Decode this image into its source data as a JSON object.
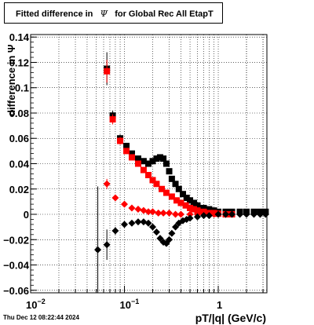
{
  "header": {
    "title_pre": "Fitted difference in",
    "title_sym": "Ψ",
    "title_post": "for Global Rec All EtapT"
  },
  "footer": {
    "timestamp": "Thu Dec 12 08:22:44 2024"
  },
  "chart_data": {
    "type": "scatter",
    "title": "Fitted difference in Ψ for Global Rec All EtapT",
    "xlabel": "pT/|q| (GeV/c)",
    "ylabel": "difference in Ψ",
    "xscale": "log",
    "xlim": [
      0.01,
      3.3
    ],
    "ylim": [
      -0.062,
      0.142
    ],
    "grid": true,
    "xticks": [
      {
        "v": 0.01,
        "base": "10",
        "exp": "−2"
      },
      {
        "v": 0.1,
        "base": "10",
        "exp": "−1"
      },
      {
        "v": 1,
        "base": "1",
        "exp": ""
      }
    ],
    "yticks": [
      {
        "v": -0.06,
        "label": "−0.06"
      },
      {
        "v": -0.04,
        "label": "−0.04"
      },
      {
        "v": -0.02,
        "label": "−0.02"
      },
      {
        "v": 0,
        "label": "0"
      },
      {
        "v": 0.02,
        "label": "0.02"
      },
      {
        "v": 0.04,
        "label": "0.04"
      },
      {
        "v": 0.06,
        "label": "0.06"
      },
      {
        "v": 0.08,
        "label": "0.08"
      },
      {
        "v": 0.1,
        "label": "0.1"
      },
      {
        "v": 0.12,
        "label": "0.12"
      },
      {
        "v": 0.14,
        "label": "0.14"
      }
    ],
    "series": [
      {
        "marker": "square",
        "color": "#000000",
        "x": [
          0.065,
          0.075,
          0.09,
          0.105,
          0.12,
          0.14,
          0.16,
          0.18,
          0.2,
          0.22,
          0.24,
          0.26,
          0.28,
          0.3,
          0.32,
          0.35,
          0.38,
          0.42,
          0.46,
          0.5,
          0.55,
          0.6,
          0.7,
          0.8,
          0.9,
          1.0,
          1.2,
          1.4,
          1.7,
          2.0,
          2.4,
          2.8,
          3.2
        ],
        "y": [
          0.115,
          0.078,
          0.06,
          0.054,
          0.048,
          0.044,
          0.042,
          0.04,
          0.042,
          0.044,
          0.045,
          0.044,
          0.04,
          0.034,
          0.028,
          0.024,
          0.02,
          0.016,
          0.013,
          0.011,
          0.009,
          0.007,
          0.005,
          0.004,
          0.003,
          0.002,
          0.002,
          0.002,
          0.002,
          0.002,
          0.002,
          0.002,
          0.002
        ],
        "yerr": [
          0.013,
          0.004,
          0.003,
          0.002,
          0.002,
          0.001,
          0.001,
          0.001,
          0.001,
          0.001,
          0.001,
          0.001,
          0.001,
          0.001,
          0.001,
          0.001,
          0.001,
          0.001,
          0.001,
          0.001,
          0.001,
          0.001,
          0.001,
          0.001,
          0.001,
          0.001,
          0.001,
          0.001,
          0.001,
          0.001,
          0.001,
          0.001,
          0.001
        ]
      },
      {
        "marker": "square",
        "color": "#ff0000",
        "x": [
          0.065,
          0.075,
          0.09,
          0.105,
          0.12,
          0.14,
          0.16,
          0.18,
          0.2,
          0.22,
          0.25,
          0.28,
          0.32,
          0.36,
          0.4,
          0.45,
          0.5,
          0.55,
          0.6,
          0.7,
          0.8,
          0.9,
          1.0,
          1.2,
          1.4
        ],
        "y": [
          0.113,
          0.075,
          0.058,
          0.05,
          0.045,
          0.04,
          0.035,
          0.031,
          0.027,
          0.024,
          0.02,
          0.017,
          0.014,
          0.011,
          0.009,
          0.007,
          0.005,
          0.004,
          0.003,
          0.002,
          0.001,
          0.001,
          0.0005,
          0.0,
          0.0
        ],
        "yerr": [
          0.009,
          0.004,
          0.003,
          0.002,
          0.002,
          0.001,
          0.001,
          0.001,
          0.001,
          0.001,
          0.001,
          0.001,
          0.001,
          0.001,
          0.001,
          0.001,
          0.001,
          0.001,
          0.001,
          0.001,
          0.001,
          0.001,
          0.001,
          0.001,
          0.001
        ]
      },
      {
        "marker": "diamond",
        "color": "#ff0000",
        "x": [
          0.065,
          0.08,
          0.1,
          0.12,
          0.14,
          0.16,
          0.18,
          0.2,
          0.23,
          0.26,
          0.3,
          0.35,
          0.4,
          0.5,
          0.6,
          0.7,
          0.8,
          0.9,
          1.0,
          1.2
        ],
        "y": [
          0.024,
          0.013,
          0.008,
          0.005,
          0.004,
          0.003,
          0.002,
          0.002,
          0.001,
          0.001,
          0.001,
          0.0,
          0.0,
          0.0,
          0.0,
          0.0,
          0.0,
          0.0,
          0.0,
          0.0
        ],
        "yerr": [
          0.004,
          0.002,
          0.001,
          0.001,
          0.001,
          0.001,
          0.001,
          0.001,
          0.001,
          0.001,
          0.001,
          0.001,
          0.001,
          0.001,
          0.001,
          0.001,
          0.001,
          0.001,
          0.001,
          0.001
        ]
      },
      {
        "marker": "diamond",
        "color": "#000000",
        "x": [
          0.052,
          0.065,
          0.08,
          0.1,
          0.12,
          0.14,
          0.16,
          0.18,
          0.2,
          0.22,
          0.24,
          0.26,
          0.28,
          0.3,
          0.32,
          0.35,
          0.38,
          0.42,
          0.46,
          0.5,
          0.6,
          0.7,
          0.8,
          1.0,
          1.2,
          1.4,
          1.7,
          2.0,
          2.4,
          2.8,
          3.2
        ],
        "y": [
          -0.028,
          -0.024,
          -0.013,
          -0.008,
          -0.007,
          -0.006,
          -0.006,
          -0.007,
          -0.01,
          -0.014,
          -0.019,
          -0.022,
          -0.023,
          -0.02,
          -0.015,
          -0.01,
          -0.007,
          -0.005,
          -0.004,
          -0.003,
          -0.002,
          -0.001,
          -0.001,
          0.0,
          0.0,
          0.0,
          0.0,
          0.0,
          0.0,
          0.0,
          0.0
        ],
        "yerr": [
          0.05,
          0.012,
          0.003,
          0.002,
          0.001,
          0.001,
          0.001,
          0.001,
          0.001,
          0.001,
          0.001,
          0.001,
          0.001,
          0.001,
          0.001,
          0.001,
          0.001,
          0.001,
          0.001,
          0.001,
          0.001,
          0.001,
          0.001,
          0.001,
          0.001,
          0.001,
          0.001,
          0.001,
          0.001,
          0.001,
          0.001
        ]
      }
    ]
  }
}
